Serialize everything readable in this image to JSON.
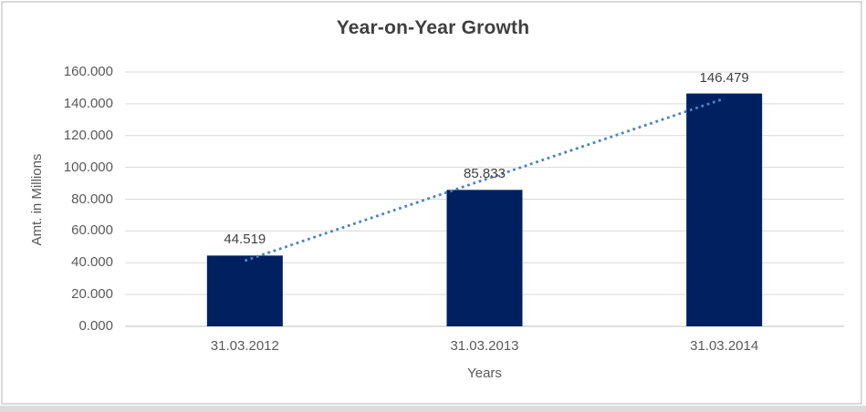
{
  "chart_data": {
    "type": "bar",
    "title": "Year-on-Year Growth",
    "categories": [
      "31.03.2012",
      "31.03.2013",
      "31.03.2014"
    ],
    "values": [
      44.519,
      85.833,
      146.479
    ],
    "data_labels": [
      "44.519",
      "85.833",
      "146.479"
    ],
    "xlabel": "Years",
    "ylabel": "Amt. in Millions",
    "ylim": [
      0,
      160
    ],
    "ytick_interval": 20,
    "ytick_labels": [
      "0.000",
      "20.000",
      "40.000",
      "60.000",
      "80.000",
      "100.000",
      "120.000",
      "140.000",
      "160.000"
    ],
    "grid": true,
    "legend": "none",
    "trendline": {
      "type": "linear",
      "style": "dotted"
    },
    "colors": {
      "bar": "#002060",
      "trendline": "#4d82c4",
      "gridline": "#d9d9d9",
      "axis_line": "#bfbfbf",
      "title_text": "#3f3f3f",
      "data_label_text": "#404040",
      "tick_text": "#595959",
      "frame_border": "#d9d9d9"
    }
  }
}
